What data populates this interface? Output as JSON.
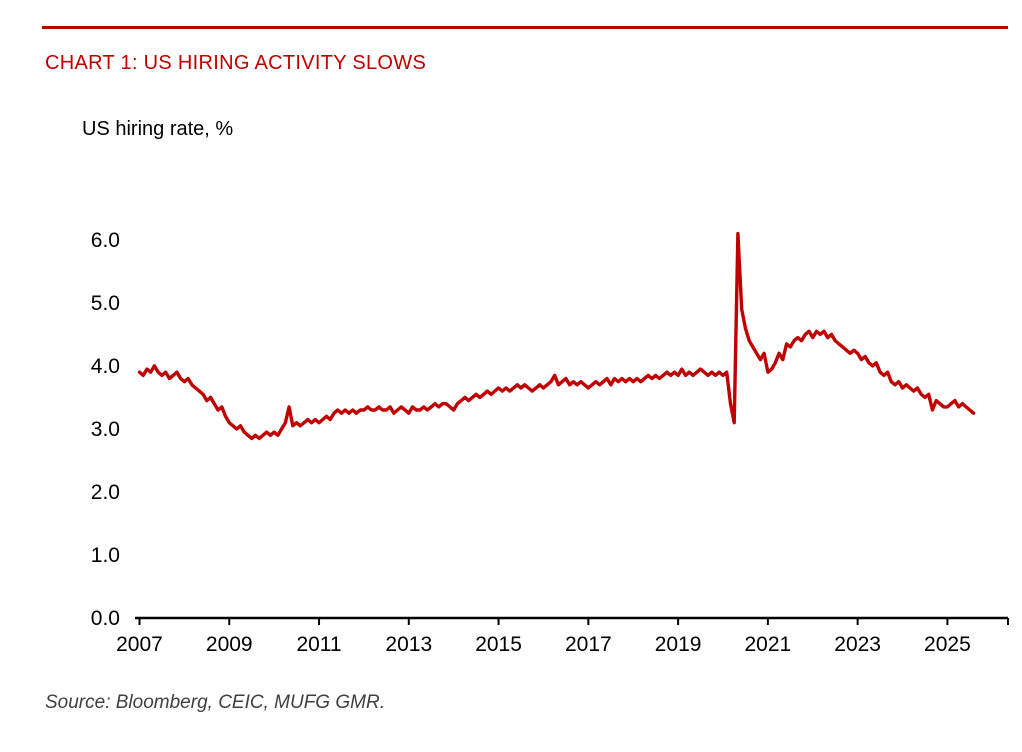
{
  "page": {
    "title": "CHART 1: US HIRING ACTIVITY SLOWS",
    "subtitle": "US hiring rate, %",
    "source": "Source: Bloomberg, CEIC, MUFG GMR.",
    "accent_color": "#C00000",
    "axis_color": "#000000",
    "text_color": "#000000",
    "source_color": "#3f3f3f"
  },
  "chart_data": {
    "type": "line",
    "title": "CHART 1: US HIRING ACTIVITY SLOWS",
    "ylabel": "US hiring rate, %",
    "xlabel": "",
    "grid": false,
    "legend": false,
    "xlim": [
      2006.9,
      2026.35
    ],
    "ylim": [
      0,
      6.3
    ],
    "x_ticks": [
      2007,
      2009,
      2011,
      2013,
      2015,
      2017,
      2019,
      2021,
      2023,
      2025
    ],
    "x_tick_labels": [
      "2007",
      "2009",
      "2011",
      "2013",
      "2015",
      "2017",
      "2019",
      "2021",
      "2023",
      "2025"
    ],
    "y_ticks": [
      0,
      1,
      2,
      3,
      4,
      5,
      6
    ],
    "y_tick_labels": [
      "0.0",
      "1.0",
      "2.0",
      "3.0",
      "4.0",
      "5.0",
      "6.0"
    ],
    "series": [
      {
        "name": "US hiring rate, %",
        "color": "#C00000",
        "frequency": "monthly",
        "start_year": 2007,
        "values": [
          3.9,
          3.85,
          3.95,
          3.9,
          4.0,
          3.9,
          3.85,
          3.9,
          3.8,
          3.85,
          3.9,
          3.8,
          3.75,
          3.8,
          3.7,
          3.65,
          3.6,
          3.55,
          3.45,
          3.5,
          3.4,
          3.3,
          3.35,
          3.2,
          3.1,
          3.05,
          3.0,
          3.05,
          2.95,
          2.9,
          2.85,
          2.9,
          2.85,
          2.9,
          2.95,
          2.9,
          2.95,
          2.9,
          3.0,
          3.1,
          3.35,
          3.05,
          3.1,
          3.05,
          3.1,
          3.15,
          3.1,
          3.15,
          3.1,
          3.15,
          3.2,
          3.15,
          3.25,
          3.3,
          3.25,
          3.3,
          3.25,
          3.3,
          3.25,
          3.3,
          3.3,
          3.35,
          3.3,
          3.3,
          3.35,
          3.3,
          3.3,
          3.35,
          3.25,
          3.3,
          3.35,
          3.3,
          3.25,
          3.35,
          3.3,
          3.3,
          3.35,
          3.3,
          3.35,
          3.4,
          3.35,
          3.4,
          3.4,
          3.35,
          3.3,
          3.4,
          3.45,
          3.5,
          3.45,
          3.5,
          3.55,
          3.5,
          3.55,
          3.6,
          3.55,
          3.6,
          3.65,
          3.6,
          3.65,
          3.6,
          3.65,
          3.7,
          3.65,
          3.7,
          3.65,
          3.6,
          3.65,
          3.7,
          3.65,
          3.7,
          3.75,
          3.85,
          3.7,
          3.75,
          3.8,
          3.7,
          3.75,
          3.7,
          3.75,
          3.7,
          3.65,
          3.7,
          3.75,
          3.7,
          3.75,
          3.8,
          3.7,
          3.8,
          3.75,
          3.8,
          3.75,
          3.8,
          3.75,
          3.8,
          3.75,
          3.8,
          3.85,
          3.8,
          3.85,
          3.8,
          3.85,
          3.9,
          3.85,
          3.9,
          3.85,
          3.95,
          3.85,
          3.9,
          3.85,
          3.9,
          3.95,
          3.9,
          3.85,
          3.9,
          3.85,
          3.9,
          3.85,
          3.9,
          3.4,
          3.1,
          6.1,
          4.9,
          4.6,
          4.4,
          4.3,
          4.2,
          4.1,
          4.2,
          3.9,
          3.95,
          4.05,
          4.2,
          4.1,
          4.35,
          4.3,
          4.4,
          4.45,
          4.4,
          4.5,
          4.55,
          4.45,
          4.55,
          4.5,
          4.55,
          4.45,
          4.5,
          4.4,
          4.35,
          4.3,
          4.25,
          4.2,
          4.25,
          4.2,
          4.1,
          4.15,
          4.05,
          4.0,
          4.05,
          3.9,
          3.85,
          3.9,
          3.75,
          3.7,
          3.75,
          3.65,
          3.7,
          3.65,
          3.6,
          3.65,
          3.55,
          3.5,
          3.55,
          3.3,
          3.45,
          3.4,
          3.35,
          3.35,
          3.4,
          3.45,
          3.35,
          3.4,
          3.35,
          3.3,
          3.25
        ]
      }
    ]
  }
}
